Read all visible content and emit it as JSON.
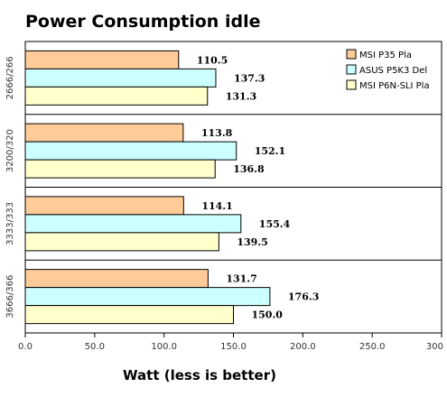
{
  "chart_data": {
    "type": "bar",
    "orientation": "horizontal",
    "title": "Power Consumption idle",
    "xlabel": "Watt (less is better)",
    "ylabel": "",
    "xlim": [
      0,
      300
    ],
    "xticks": [
      "0.0",
      "50.0",
      "100.0",
      "150.0",
      "200.0",
      "250.0",
      "300"
    ],
    "categories": [
      "2666/266",
      "3200/320",
      "3333/333",
      "3666/366"
    ],
    "series": [
      {
        "name": "MSI P35 Pla",
        "color": "#ffcc99",
        "values": [
          110.5,
          113.8,
          114.1,
          131.7
        ],
        "labels": [
          "110.5",
          "113.8",
          "114.1",
          "131.7"
        ]
      },
      {
        "name": "ASUS P5K3 Del",
        "color": "#ccffff",
        "values": [
          137.3,
          152.1,
          155.4,
          176.3
        ],
        "labels": [
          "137.3",
          "152.1",
          "155.4",
          "176.3"
        ]
      },
      {
        "name": "MSI P6N-SLI Pla",
        "color": "#ffffcc",
        "values": [
          131.3,
          136.8,
          139.5,
          150.0
        ],
        "labels": [
          "131.3",
          "136.8",
          "139.5",
          "150.0"
        ]
      }
    ],
    "legend_position": "top-right",
    "grid": false
  }
}
